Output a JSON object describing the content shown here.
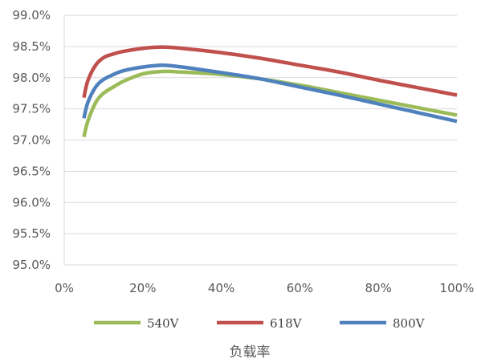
{
  "chart_data": {
    "type": "line",
    "title": "",
    "xlabel": "负载率",
    "ylabel": "",
    "xlim": [
      0,
      100
    ],
    "ylim": [
      95.0,
      99.0
    ],
    "x_ticks": [
      "0%",
      "20%",
      "40%",
      "60%",
      "80%",
      "100%"
    ],
    "y_ticks": [
      "95.0%",
      "95.5%",
      "96.0%",
      "96.5%",
      "97.0%",
      "97.5%",
      "98.0%",
      "98.5%",
      "99.0%"
    ],
    "grid": "horizontal",
    "legend_position": "bottom",
    "series": [
      {
        "name": "540V",
        "color": "#9BBB59",
        "x": [
          5,
          6,
          8,
          10,
          12.5,
          15,
          20,
          25,
          30,
          40,
          50,
          60,
          70,
          80,
          90,
          100
        ],
        "y": [
          97.05,
          97.3,
          97.6,
          97.75,
          97.85,
          97.94,
          98.06,
          98.1,
          98.09,
          98.05,
          97.98,
          97.88,
          97.76,
          97.64,
          97.52,
          97.4
        ]
      },
      {
        "name": "618V",
        "color": "#C0504D",
        "x": [
          5,
          6,
          8,
          10,
          12.5,
          15,
          20,
          25,
          30,
          40,
          50,
          60,
          70,
          80,
          90,
          100
        ],
        "y": [
          97.68,
          97.95,
          98.2,
          98.32,
          98.38,
          98.42,
          98.47,
          98.49,
          98.47,
          98.4,
          98.31,
          98.2,
          98.09,
          97.96,
          97.84,
          97.72
        ]
      },
      {
        "name": "800V",
        "color": "#4F81BD",
        "x": [
          5,
          6,
          8,
          10,
          12.5,
          15,
          20,
          25,
          30,
          40,
          50,
          60,
          70,
          80,
          90,
          100
        ],
        "y": [
          97.35,
          97.6,
          97.85,
          97.97,
          98.05,
          98.11,
          98.17,
          98.2,
          98.17,
          98.08,
          97.98,
          97.85,
          97.72,
          97.58,
          97.44,
          97.3
        ]
      }
    ]
  }
}
